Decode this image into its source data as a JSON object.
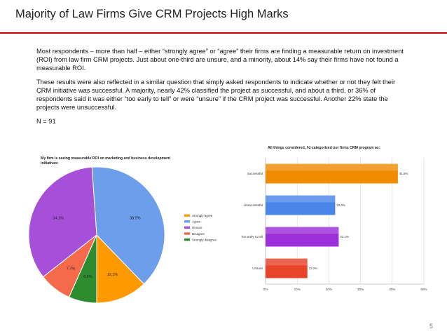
{
  "slide": {
    "title": "Majority of Law Firms Give CRM Projects High Marks",
    "paragraphs": [
      "Most respondents – more than half – either “strongly agree” or “agree” their firms are finding a measurable return on investment (ROI)  from law firm CRM projects.   Just about one-third are unsure, and a minority, about 14% say their firms have not found a measurable ROI.",
      "These results were also reflected in a similar question that simply asked respondents to indicate whether or not they felt their CRM initiative was successful.  A majority, nearly 42% classified the project as successful, and about a third, or 36% of respondents said it was either “too early to tell” or were “unsure” if the CRM project was successful.   Another 22% state the projects were unsuccessful."
    ],
    "n_label": "N = 91",
    "page_number": "5",
    "accent_color": "#c00000"
  },
  "chart_data": [
    {
      "type": "pie",
      "title": "My firm is seeing measurable ROI on marketing and business development initiatives:",
      "categories": [
        "Strongly agree",
        "Agree",
        "Unsure",
        "Disagree",
        "Strongly disagree"
      ],
      "values": [
        12.1,
        38.5,
        34.1,
        7.7,
        6.6
      ],
      "labels": [
        "12.1%",
        "38.5%",
        "34.1%",
        "7.7%",
        "6.6%"
      ],
      "colors": [
        "#ff9900",
        "#6d9eeb",
        "#a64fd9",
        "#f56a4a",
        "#2e8b2e"
      ],
      "legend": "right"
    },
    {
      "type": "bar",
      "orientation": "horizontal",
      "title": "All things considered, I'd categorized our firms CRM program as:",
      "categories": [
        "Successful",
        "Unsuccessful",
        "Too early to tell",
        "Unsure"
      ],
      "values": [
        41.8,
        22.0,
        23.1,
        13.2
      ],
      "labels": [
        "41.8%",
        "22.0%",
        "23.1%",
        "13.2%"
      ],
      "colors": [
        "#f08c00",
        "#4a86e8",
        "#9b30d9",
        "#e8442a"
      ],
      "xlim": [
        0,
        50
      ],
      "ticks": [
        "0%",
        "10%",
        "20%",
        "30%",
        "40%",
        "50%"
      ],
      "grid": true
    }
  ]
}
